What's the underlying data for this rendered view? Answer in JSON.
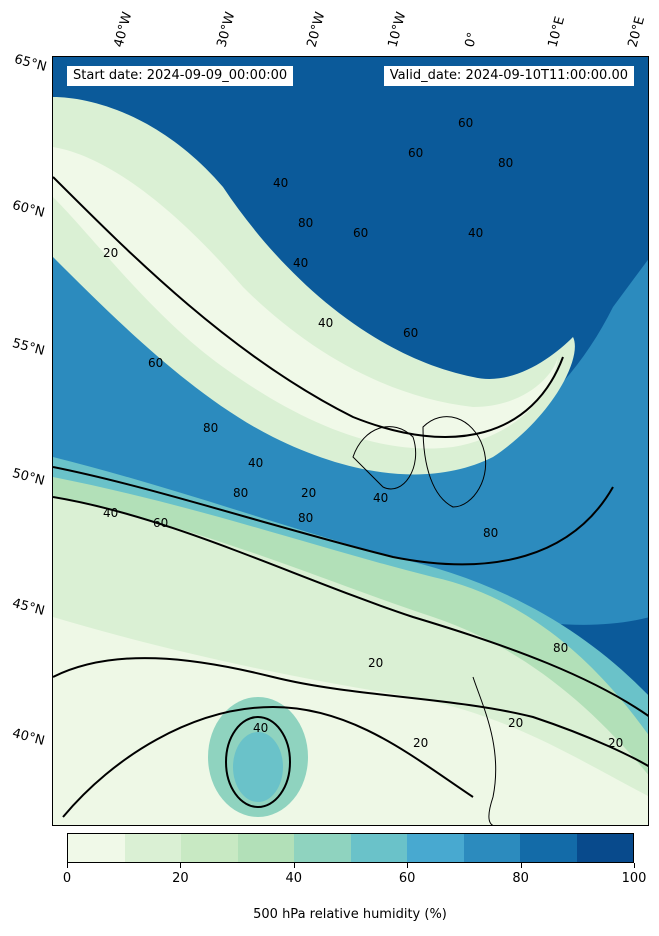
{
  "header": {
    "start_date": "Start date: 2024-09-09_00:00:00",
    "valid_date": "Valid_date: 2024-09-10T11:00:00.00"
  },
  "lat_labels": [
    "65°N",
    "60°N",
    "55°N",
    "50°N",
    "45°N",
    "40°N"
  ],
  "lon_labels": [
    "40°W",
    "30°W",
    "20°W",
    "10°W",
    "0°",
    "10°E",
    "20°E"
  ],
  "contour_labels": [
    "20",
    "20",
    "20",
    "20",
    "20",
    "20",
    "40",
    "40",
    "40",
    "40",
    "40",
    "40",
    "40",
    "40",
    "60",
    "60",
    "60",
    "60",
    "60",
    "60",
    "80",
    "80",
    "80",
    "80",
    "80",
    "80",
    "80"
  ],
  "colorbar": {
    "title": "500 hPa relative humidity (%)",
    "tick_labels": [
      "0",
      "20",
      "40",
      "60",
      "80",
      "100"
    ],
    "levels": [
      0,
      10,
      20,
      30,
      40,
      50,
      60,
      70,
      80,
      90,
      100
    ],
    "colors": [
      "#f0f9e8",
      "#daf0d4",
      "#c8e9c3",
      "#b2e0b8",
      "#8fd3bf",
      "#6ac2c9",
      "#48a9d0",
      "#2c8bbe",
      "#136ba8",
      "#084a8c"
    ]
  }
}
